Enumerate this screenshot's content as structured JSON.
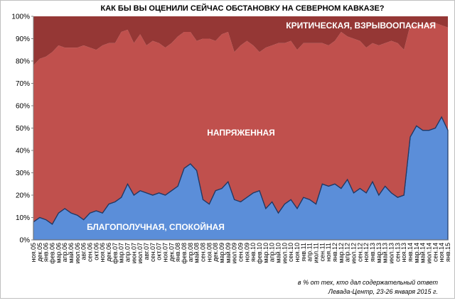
{
  "chart_data": {
    "type": "area",
    "stacked": "percent",
    "title": "КАК БЫ ВЫ ОЦЕНИЛИ СЕЙЧАС ОБСТАНОВКУ НА СЕВЕРНОМ КАВКАЗЕ?",
    "ylim": [
      0,
      100
    ],
    "yticks": [
      0,
      10,
      20,
      30,
      40,
      50,
      60,
      70,
      80,
      90,
      100
    ],
    "ytick_suffix": "%",
    "grid": false,
    "categories": [
      "ноя.05",
      "дек.05",
      "янв.06",
      "фев.06",
      "мар.06",
      "апр.06",
      "май.06",
      "июл.06",
      "авг.06",
      "сен.06",
      "окт.06",
      "ноя.06",
      "дек.06",
      "фев.07",
      "мар.07",
      "апр.07",
      "июн.07",
      "июл.07",
      "авг.07",
      "сен.07",
      "окт.07",
      "ноя.07",
      "дек.07",
      "янв.08",
      "фев.08",
      "апр.08",
      "май.08",
      "сен.08",
      "ноя.08",
      "дек.08",
      "мар.09",
      "май.09",
      "июл.09",
      "сен.09",
      "ноя.09",
      "янв.10",
      "фев.10",
      "мар.10",
      "апр.10",
      "май.10",
      "июл.10",
      "сен.10",
      "ноя.10",
      "янв.11",
      "апр.11",
      "июл.11",
      "сен.11",
      "ноя.11",
      "янв.12",
      "мар.12",
      "апр.12",
      "июл.12",
      "сен.12",
      "ноя.12",
      "янв.13",
      "мар.13",
      "май.13",
      "июл.13",
      "сен.13",
      "ноя.13",
      "янв.14",
      "мар.14",
      "май.14",
      "июл.14",
      "сен.14",
      "ноя.14",
      "янв.15"
    ],
    "series": [
      {
        "name": "БЛАГОПОЛУЧНАЯ, СПОКОЙНАЯ",
        "color": "#5b8ed9",
        "values": [
          8,
          10,
          9,
          7,
          12,
          14,
          12,
          11,
          9,
          12,
          13,
          12,
          16,
          17,
          19,
          25,
          20,
          22,
          21,
          20,
          21,
          20,
          22,
          24,
          32,
          34,
          31,
          18,
          16,
          22,
          23,
          26,
          18,
          17,
          19,
          21,
          22,
          14,
          17,
          12,
          16,
          18,
          14,
          19,
          18,
          16,
          25,
          24,
          25,
          23,
          27,
          21,
          23,
          21,
          26,
          20,
          24,
          21,
          19,
          20,
          46,
          51,
          49,
          49,
          50,
          55,
          49
        ]
      },
      {
        "name": "НАПРЯЖЕННАЯ",
        "color": "#c0504d",
        "values": [
          70,
          71,
          73,
          77,
          75,
          72,
          74,
          75,
          78,
          74,
          72,
          75,
          72,
          71,
          74,
          69,
          68,
          70,
          66,
          69,
          67,
          66,
          66,
          67,
          61,
          59,
          58,
          72,
          74,
          67,
          69,
          67,
          66,
          70,
          70,
          66,
          62,
          72,
          70,
          76,
          72,
          71,
          71,
          69,
          70,
          72,
          63,
          63,
          64,
          70,
          64,
          69,
          66,
          65,
          62,
          67,
          64,
          68,
          69,
          65,
          50,
          45,
          47,
          48,
          47,
          41,
          46
        ]
      },
      {
        "name": "КРИТИЧЕСКАЯ, ВЗРЫВООПАСНАЯ",
        "color": "#953735",
        "values": [
          22,
          19,
          18,
          16,
          13,
          14,
          14,
          14,
          13,
          14,
          15,
          13,
          12,
          12,
          7,
          6,
          12,
          8,
          13,
          11,
          12,
          14,
          12,
          9,
          7,
          7,
          11,
          10,
          10,
          11,
          8,
          7,
          16,
          13,
          11,
          13,
          16,
          14,
          13,
          12,
          12,
          11,
          15,
          12,
          12,
          12,
          12,
          13,
          11,
          7,
          9,
          10,
          11,
          14,
          12,
          13,
          12,
          11,
          12,
          15,
          4,
          4,
          4,
          3,
          3,
          4,
          5
        ]
      }
    ],
    "annotations": [
      "в % от тех, кто дал содержательный ответ",
      "Левада-Центр, 23-26 января 2015 г."
    ]
  }
}
